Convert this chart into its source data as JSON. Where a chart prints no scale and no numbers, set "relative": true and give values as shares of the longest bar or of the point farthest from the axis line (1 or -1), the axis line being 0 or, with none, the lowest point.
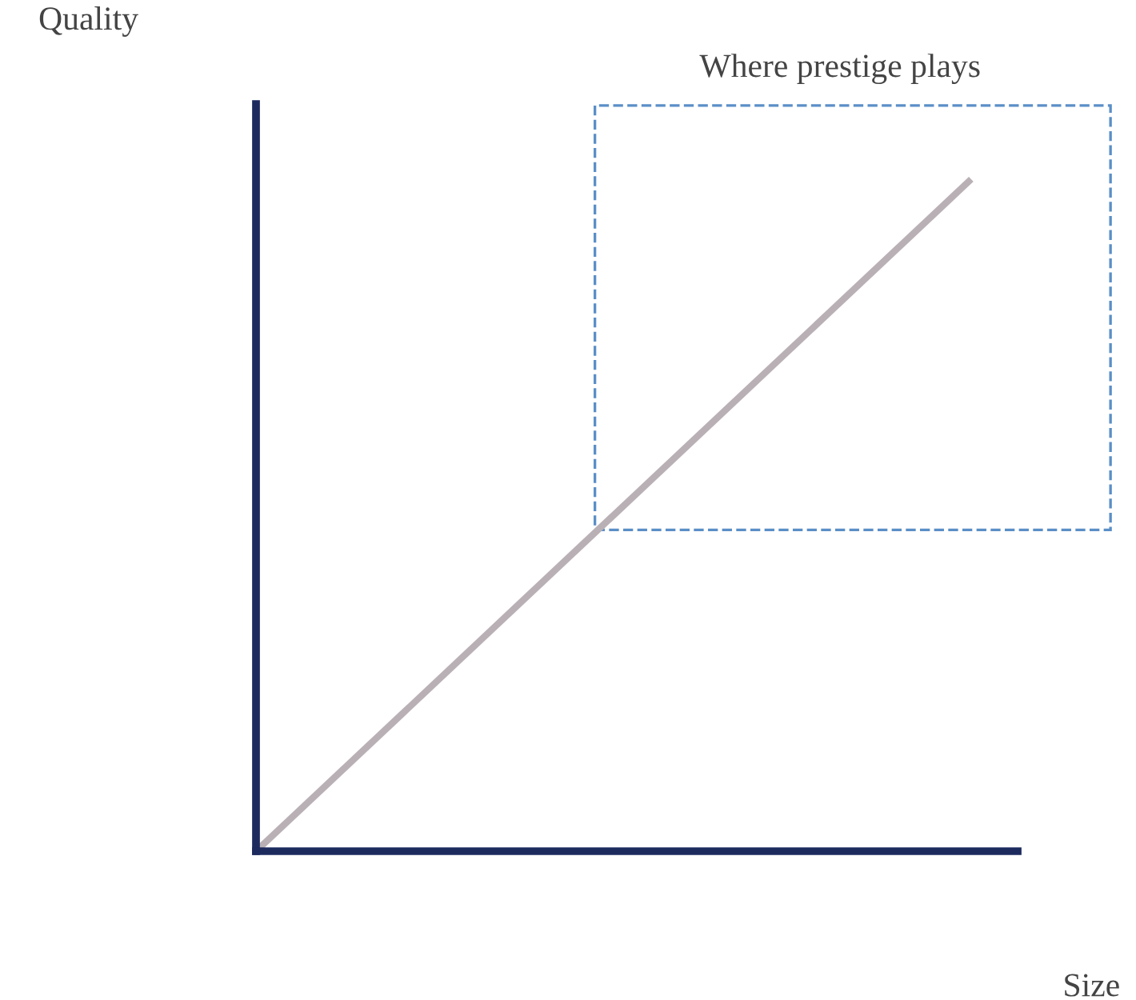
{
  "chart_data": {
    "type": "line",
    "relative": true,
    "xlabel": "Size",
    "ylabel": "Quality",
    "categories": [
      null,
      null
    ],
    "series": [
      {
        "color": "#b9b0b5",
        "values": [
          0,
          1
        ]
      }
    ],
    "annotations": [
      "Where prestige plays"
    ],
    "ref_lines": [
      {
        "axis": "y",
        "value": 0,
        "color": "#1c2a5e",
        "line_style": "solid"
      }
    ],
    "legend": false,
    "marker": "none",
    "line_style": "solid"
  }
}
